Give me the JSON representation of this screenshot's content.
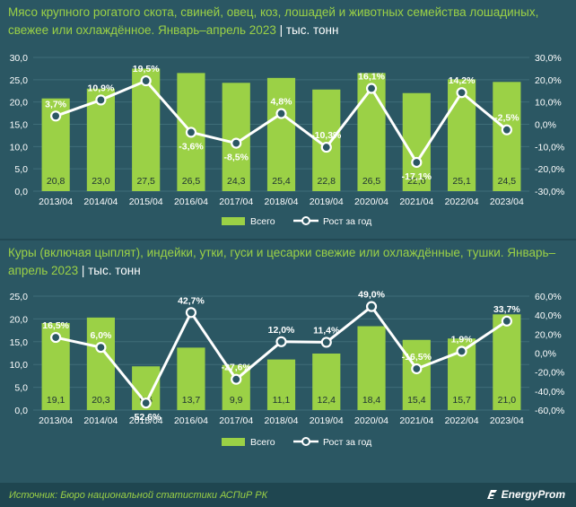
{
  "chart_data": [
    {
      "type": "bar+line",
      "title": "Мясо крупного рогатого скота, свиней, овец, коз, лошадей и животных семейства лошадиных, свежее или охлаждённое. Январь–апрель 2023",
      "unit": "тыс. тонн",
      "categories": [
        "2013/04",
        "2014/04",
        "2015/04",
        "2016/04",
        "2017/04",
        "2018/04",
        "2019/04",
        "2020/04",
        "2021/04",
        "2022/04",
        "2023/04"
      ],
      "series": [
        {
          "name": "Всего",
          "type": "bar",
          "axis": "left",
          "values": [
            20.8,
            23.0,
            27.5,
            26.5,
            24.3,
            25.4,
            22.8,
            26.5,
            22.0,
            25.1,
            24.5
          ],
          "labels": [
            "20,8",
            "23,0",
            "27,5",
            "26,5",
            "24,3",
            "25,4",
            "22,8",
            "26,5",
            "22,0",
            "25,1",
            "24,5"
          ]
        },
        {
          "name": "Рост за год",
          "type": "line",
          "axis": "right",
          "values": [
            3.7,
            10.9,
            19.5,
            -3.6,
            -8.5,
            4.8,
            -10.3,
            16.1,
            -17.1,
            14.2,
            -2.5
          ],
          "labels": [
            "3,7%",
            "10,9%",
            "19,5%",
            "-3,6%",
            "-8,5%",
            "4,8%",
            "-10,3%",
            "16,1%",
            "-17,1%",
            "14,2%",
            "-2,5%"
          ]
        }
      ],
      "left_axis": {
        "min": 0,
        "max": 30,
        "ticks": [
          "0,0",
          "5,0",
          "10,0",
          "15,0",
          "20,0",
          "25,0",
          "30,0"
        ]
      },
      "right_axis": {
        "min": -30,
        "max": 30,
        "ticks": [
          "-30,0%",
          "-20,0%",
          "-10,0%",
          "0,0%",
          "10,0%",
          "20,0%",
          "30,0%"
        ]
      },
      "legend": [
        "Всего",
        "Рост за год"
      ]
    },
    {
      "type": "bar+line",
      "title": "Куры (включая цыплят), индейки, утки, гуси и цесарки свежие или охлаждённые, тушки. Январь–апрель 2023",
      "unit": "тыс. тонн",
      "categories": [
        "2013/04",
        "2014/04",
        "2015/04",
        "2016/04",
        "2017/04",
        "2018/04",
        "2019/04",
        "2020/04",
        "2021/04",
        "2022/04",
        "2023/04"
      ],
      "series": [
        {
          "name": "Всего",
          "type": "bar",
          "axis": "left",
          "values": [
            19.1,
            20.3,
            9.6,
            13.7,
            9.9,
            11.1,
            12.4,
            18.4,
            15.4,
            15.7,
            21.0
          ],
          "labels": [
            "19,1",
            "20,3",
            "9,6",
            "13,7",
            "9,9",
            "11,1",
            "12,4",
            "18,4",
            "15,4",
            "15,7",
            "21,0"
          ]
        },
        {
          "name": "Рост за год",
          "type": "line",
          "axis": "right",
          "values": [
            16.5,
            6.0,
            -52.6,
            42.7,
            -27.6,
            12.0,
            11.4,
            49.0,
            -16.5,
            1.9,
            33.7
          ],
          "labels": [
            "16,5%",
            "6,0%",
            "-52,6%",
            "42,7%",
            "-27,6%",
            "12,0%",
            "11,4%",
            "49,0%",
            "-16,5%",
            "1,9%",
            "33,7%"
          ]
        }
      ],
      "left_axis": {
        "min": 0,
        "max": 25,
        "ticks": [
          "0,0",
          "5,0",
          "10,0",
          "15,0",
          "20,0",
          "25,0"
        ]
      },
      "right_axis": {
        "min": -60,
        "max": 60,
        "ticks": [
          "-60,0%",
          "-40,0%",
          "-20,0%",
          "0,0%",
          "20,0%",
          "40,0%",
          "60,0%"
        ]
      },
      "legend": [
        "Всего",
        "Рост за год"
      ]
    }
  ],
  "footer": {
    "source": "Источник: Бюро национальной статистики АСПиР РК",
    "brand": "EnergyProm"
  },
  "colors": {
    "bar": "#9bd146",
    "line": "#ffffff",
    "accent": "#9bd146",
    "background": "#2b5763"
  }
}
